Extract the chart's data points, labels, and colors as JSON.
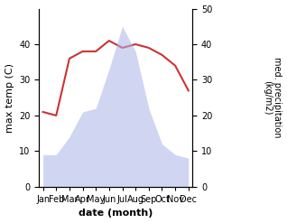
{
  "months": [
    "Jan",
    "Feb",
    "Mar",
    "Apr",
    "May",
    "Jun",
    "Jul",
    "Aug",
    "Sep",
    "Oct",
    "Nov",
    "Dec"
  ],
  "temperature": [
    21,
    20,
    36,
    38,
    38,
    41,
    39,
    40,
    39,
    37,
    34,
    27
  ],
  "precipitation": [
    9,
    9,
    14,
    21,
    22,
    33,
    45,
    38,
    22,
    12,
    9,
    8
  ],
  "precip_color": "#aab4e8",
  "temp_color": "#cc3333",
  "fill_alpha": 0.55,
  "xlabel": "date (month)",
  "ylabel_left": "max temp (C)",
  "ylabel_right": "med. precipitation\n(kg/m2)",
  "ylim_left": [
    0,
    50
  ],
  "ylim_right": [
    0,
    50
  ],
  "yticks_left": [
    0,
    10,
    20,
    30,
    40
  ],
  "yticks_right": [
    0,
    10,
    20,
    30,
    40,
    50
  ],
  "bg_color": "#ffffff"
}
